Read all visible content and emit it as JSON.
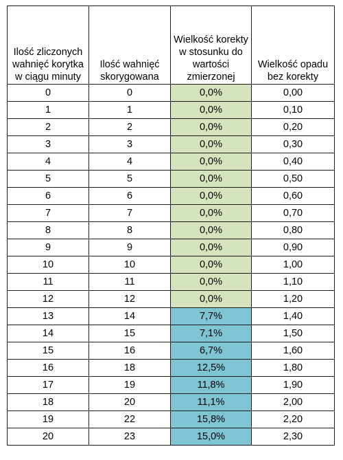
{
  "table": {
    "headers": [
      "Ilość zliczonych wahnięć korytka w ciągu minuty",
      "Ilość wahnięć skorygowana",
      "Wielkość korekty w stosunku do wartości zmierzonej",
      "Wielkość opadu bez korekty"
    ],
    "colors": {
      "no_correction": "#d6e4bd",
      "correction": "#7fc4d2"
    },
    "rows": [
      {
        "counted": "0",
        "corrected": "0",
        "correction": "0,0%",
        "rain": "0,00",
        "corrected_flag": false
      },
      {
        "counted": "1",
        "corrected": "1",
        "correction": "0,0%",
        "rain": "0,10",
        "corrected_flag": false
      },
      {
        "counted": "2",
        "corrected": "2",
        "correction": "0,0%",
        "rain": "0,20",
        "corrected_flag": false
      },
      {
        "counted": "3",
        "corrected": "3",
        "correction": "0,0%",
        "rain": "0,30",
        "corrected_flag": false
      },
      {
        "counted": "4",
        "corrected": "4",
        "correction": "0,0%",
        "rain": "0,40",
        "corrected_flag": false
      },
      {
        "counted": "5",
        "corrected": "5",
        "correction": "0,0%",
        "rain": "0,50",
        "corrected_flag": false
      },
      {
        "counted": "6",
        "corrected": "6",
        "correction": "0,0%",
        "rain": "0,60",
        "corrected_flag": false
      },
      {
        "counted": "7",
        "corrected": "7",
        "correction": "0,0%",
        "rain": "0,70",
        "corrected_flag": false
      },
      {
        "counted": "8",
        "corrected": "8",
        "correction": "0,0%",
        "rain": "0,80",
        "corrected_flag": false
      },
      {
        "counted": "9",
        "corrected": "9",
        "correction": "0,0%",
        "rain": "0,90",
        "corrected_flag": false
      },
      {
        "counted": "10",
        "corrected": "10",
        "correction": "0,0%",
        "rain": "1,00",
        "corrected_flag": false
      },
      {
        "counted": "11",
        "corrected": "11",
        "correction": "0,0%",
        "rain": "1,10",
        "corrected_flag": false
      },
      {
        "counted": "12",
        "corrected": "12",
        "correction": "0,0%",
        "rain": "1,20",
        "corrected_flag": false
      },
      {
        "counted": "13",
        "corrected": "14",
        "correction": "7,7%",
        "rain": "1,40",
        "corrected_flag": true
      },
      {
        "counted": "14",
        "corrected": "15",
        "correction": "7,1%",
        "rain": "1,50",
        "corrected_flag": true
      },
      {
        "counted": "15",
        "corrected": "16",
        "correction": "6,7%",
        "rain": "1,60",
        "corrected_flag": true
      },
      {
        "counted": "16",
        "corrected": "18",
        "correction": "12,5%",
        "rain": "1,80",
        "corrected_flag": true
      },
      {
        "counted": "17",
        "corrected": "19",
        "correction": "11,8%",
        "rain": "1,90",
        "corrected_flag": true
      },
      {
        "counted": "18",
        "corrected": "20",
        "correction": "11,1%",
        "rain": "2,00",
        "corrected_flag": true
      },
      {
        "counted": "19",
        "corrected": "22",
        "correction": "15,8%",
        "rain": "2,20",
        "corrected_flag": true
      },
      {
        "counted": "20",
        "corrected": "23",
        "correction": "15,0%",
        "rain": "2,30",
        "corrected_flag": true
      }
    ]
  }
}
